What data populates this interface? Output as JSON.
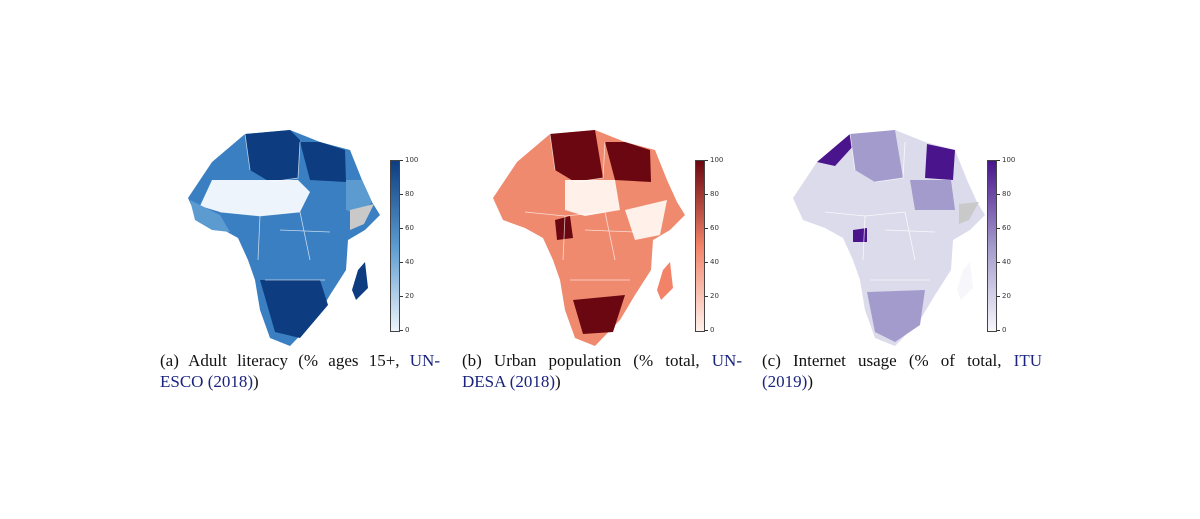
{
  "panels": [
    {
      "id": "a",
      "caption_prefix": "(a) Adult literacy (% ages 15+, ",
      "caption_ref": "UN-ESCO (2018)",
      "caption_suffix": ")",
      "colormap": "Blues",
      "colors": {
        "low": "#eef4fb",
        "mid": "#5b9bd0",
        "high": "#0d3d80",
        "land": "#3a7fc2",
        "missing": "#c9c9c9"
      },
      "colorbar_ticks": [
        "100",
        "80",
        "60",
        "40",
        "20",
        "0"
      ]
    },
    {
      "id": "b",
      "caption_prefix": "(b) Urban population (% total, ",
      "caption_ref": "UN-DESA (2018)",
      "caption_suffix": ")",
      "colormap": "Reds",
      "colors": {
        "low": "#fff1ea",
        "mid": "#f28368",
        "high": "#6b0710",
        "land": "#ef8a6f",
        "missing": "#c9c9c9"
      },
      "colorbar_ticks": [
        "100",
        "80",
        "60",
        "40",
        "20",
        "0"
      ]
    },
    {
      "id": "c",
      "caption_prefix": "(c) Internet usage (% of total, ",
      "caption_ref": "ITU (2019)",
      "caption_suffix": ")",
      "colormap": "Purples",
      "colors": {
        "low": "#f7f6fb",
        "mid": "#a39bcc",
        "high": "#4a148c",
        "land": "#dcdbeb",
        "missing": "#c9c9c9"
      },
      "colorbar_ticks": [
        "100",
        "80",
        "60",
        "40",
        "20",
        "0"
      ]
    }
  ]
}
